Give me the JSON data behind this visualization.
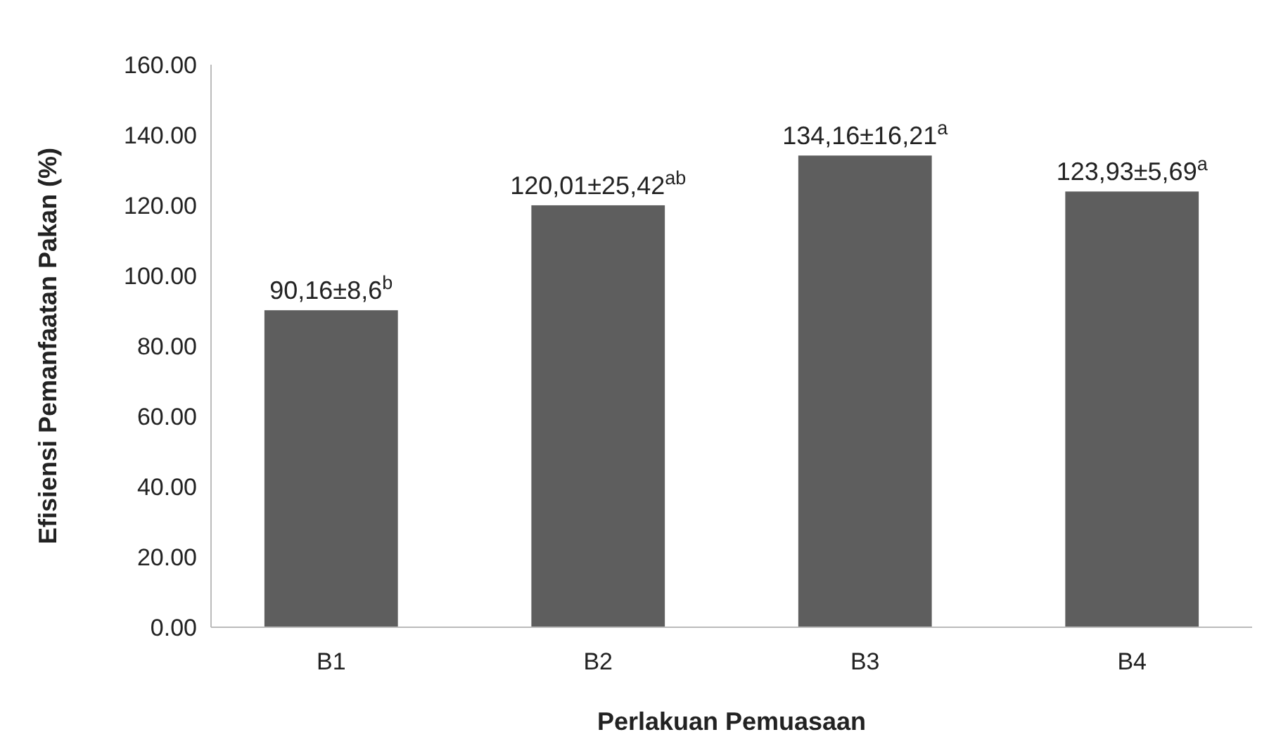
{
  "chart_data": {
    "type": "bar",
    "xlabel": "Perlakuan Pemuasaan",
    "ylabel": "Efisiensi Pemanfaatan Pakan (%)",
    "categories": [
      "B1",
      "B2",
      "B3",
      "B4"
    ],
    "values": [
      90.16,
      120.01,
      134.16,
      123.93
    ],
    "value_labels": [
      "90,16±8,6$^{b}$",
      "120,01±25,42$^{ab}$",
      "134,16±16,21$^{a}$",
      "123,93±5,69$^{a}$"
    ],
    "color": "#5e5e5e",
    "ylim": [
      0,
      160
    ],
    "yticks": [
      {
        "value": 0,
        "label": "0.00"
      },
      {
        "value": 20,
        "label": "20.00"
      },
      {
        "value": 40,
        "label": "40.00"
      },
      {
        "value": 60,
        "label": "60.00"
      },
      {
        "value": 80,
        "label": "80.00"
      },
      {
        "value": 100,
        "label": "100.00"
      },
      {
        "value": 120,
        "label": "120.00"
      },
      {
        "value": 140,
        "label": "140.00"
      },
      {
        "value": 160,
        "label": "160.00"
      }
    ],
    "grid": false
  }
}
